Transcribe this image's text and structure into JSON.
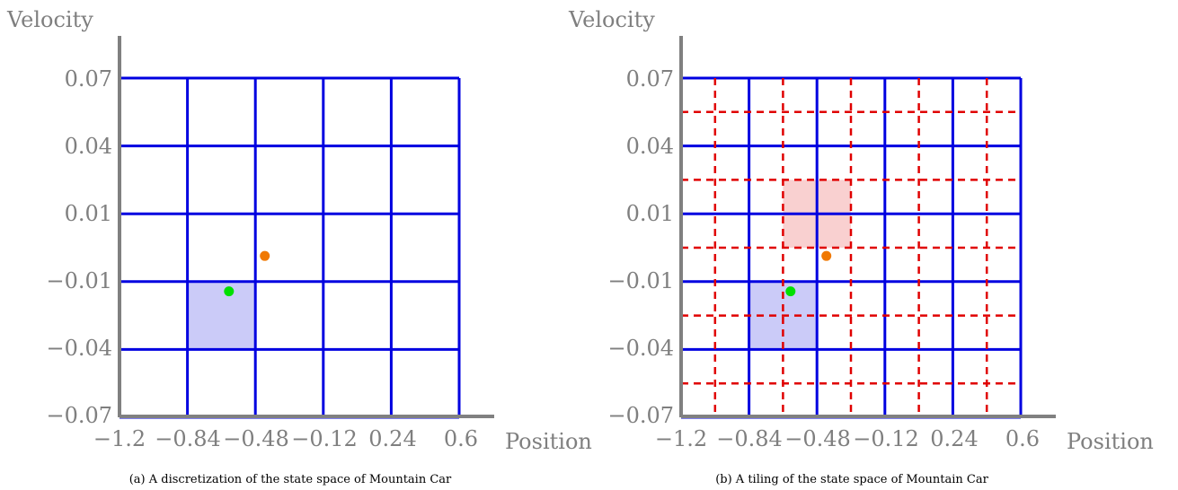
{
  "colors": {
    "axis": "#808080",
    "grid": "#0000e0",
    "tiling": "#e00000",
    "cell_fill": "#c8c8f8",
    "tile_fill": "#f8c8c8",
    "green_point": "#00e000",
    "orange_point": "#f07800",
    "tick_text": "#7f7f7f"
  },
  "shared": {
    "velocity_label": "Velocity",
    "position_label": "Position",
    "x_ticks": [
      "−1.2",
      "−0.84",
      "−0.48",
      "−0.12",
      "0.24",
      "0.6"
    ],
    "y_ticks": [
      "0.07",
      "0.04",
      "0.01",
      "−0.01",
      "−0.04",
      "−0.07"
    ]
  },
  "panels": [
    {
      "caption": "(a) A discretization of the state space of Mountain Car",
      "tiling": false,
      "points": {
        "green": {
          "position": -0.62,
          "velocity": -0.018
        },
        "orange": {
          "position": -0.43,
          "velocity": -0.0034
        }
      },
      "highlight_cell": {
        "col": 1,
        "row": 3
      }
    },
    {
      "caption": "(b) A tiling of the state space of Mountain Car",
      "tiling": true,
      "points": {
        "green": {
          "position": -0.62,
          "velocity": -0.018
        },
        "orange": {
          "position": -0.43,
          "velocity": -0.0034
        }
      },
      "highlight_cell": {
        "col": 1,
        "row": 3
      },
      "highlight_tile": {
        "col": 2,
        "row": 2
      }
    }
  ]
}
